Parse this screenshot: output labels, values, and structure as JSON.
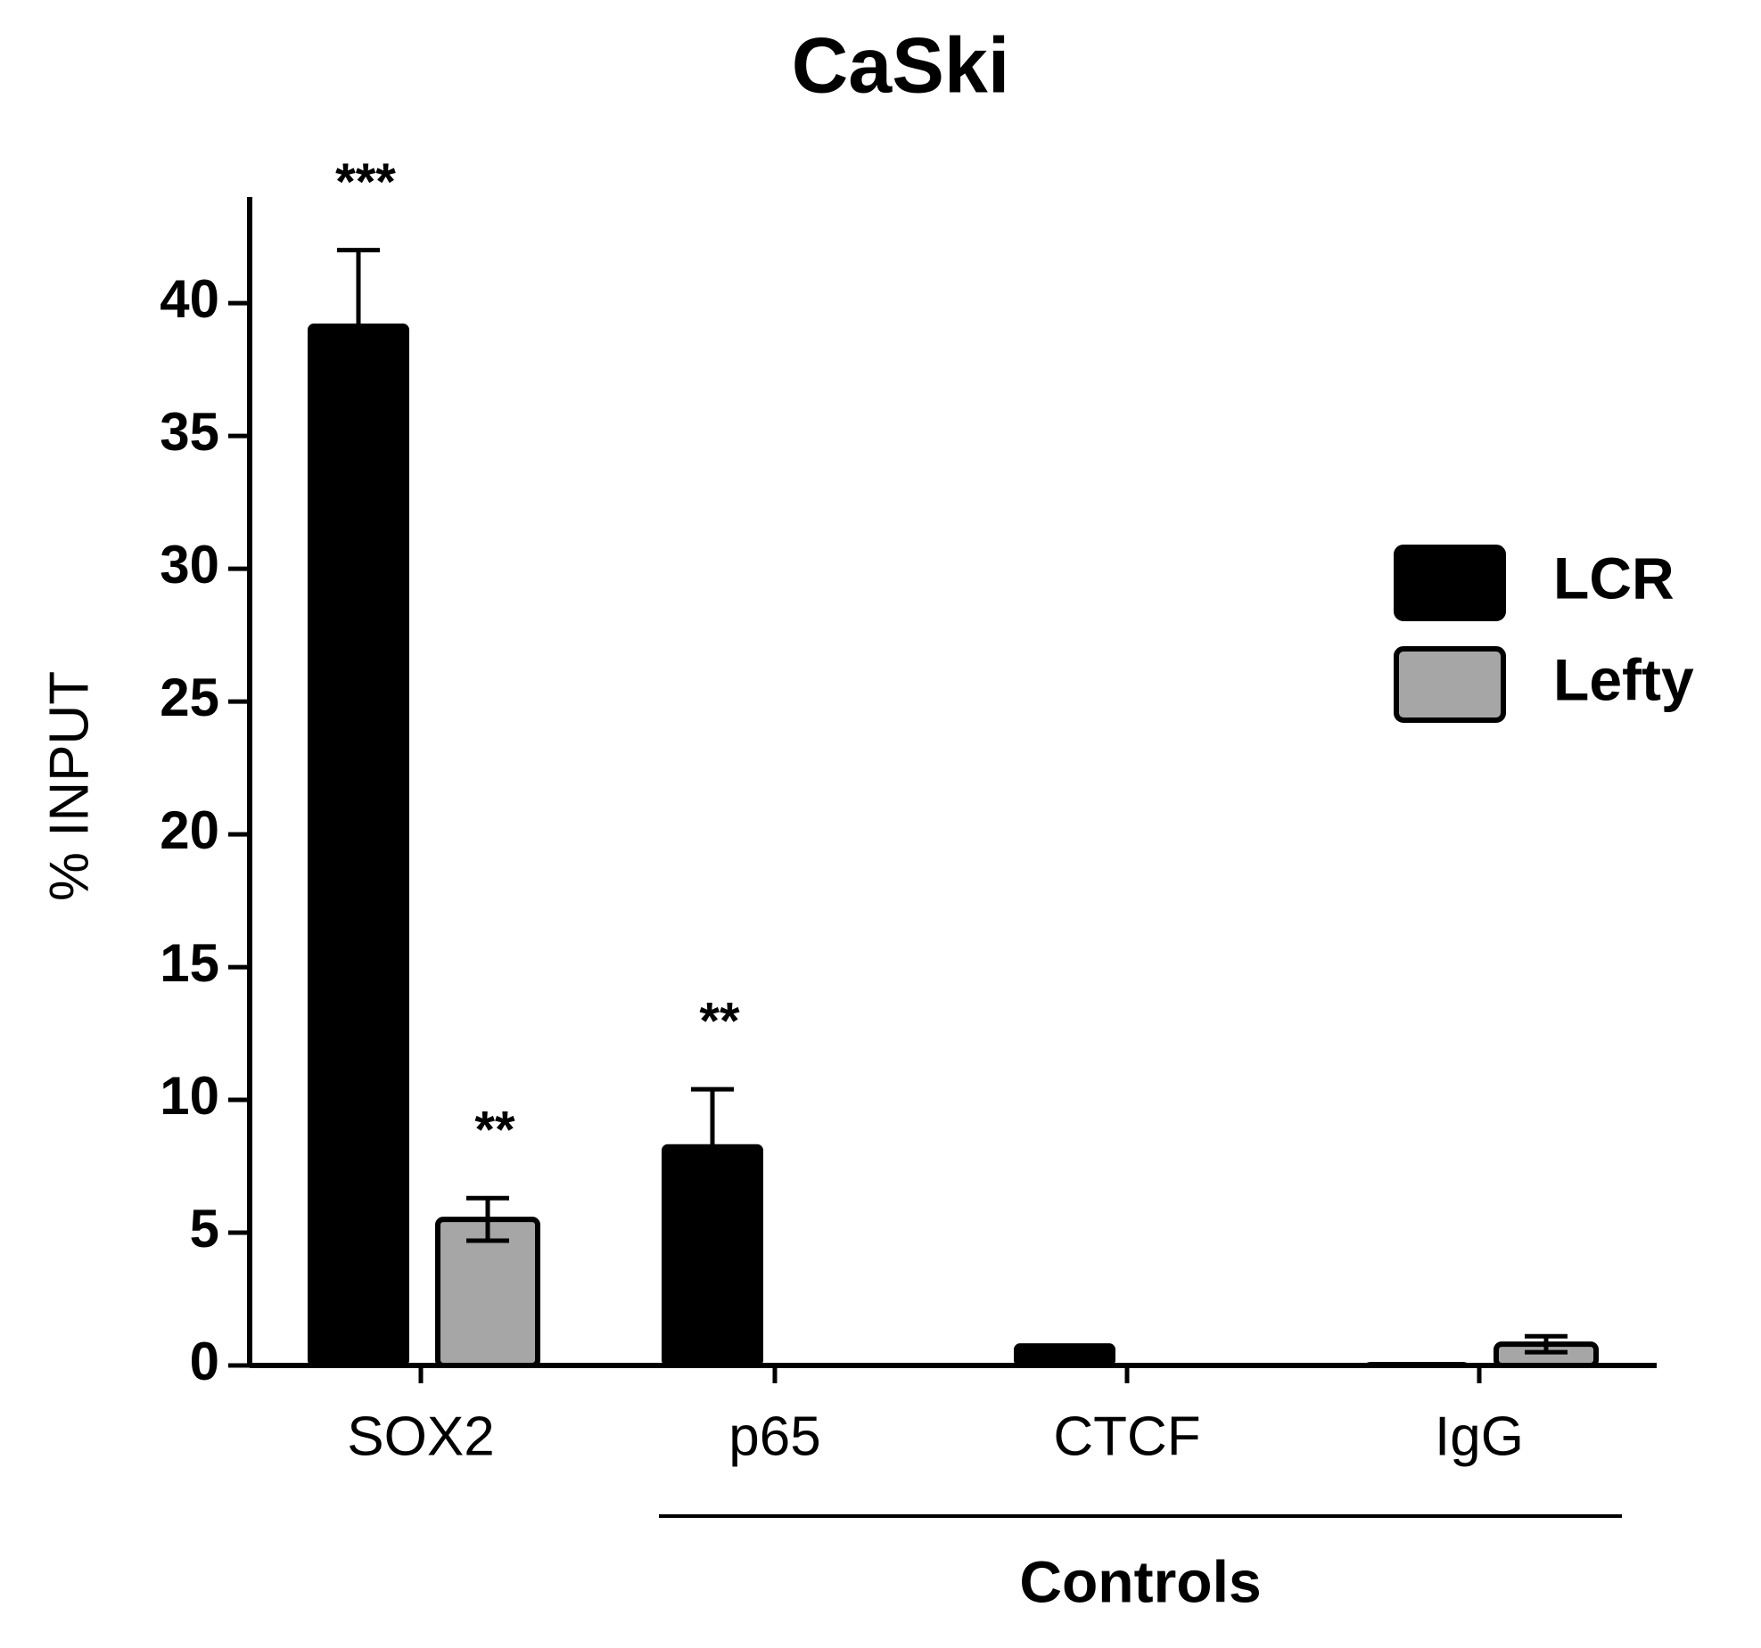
{
  "chart_data": {
    "type": "bar",
    "title": "CaSki",
    "y_label": "% INPUT",
    "categories": [
      "SOX2",
      "p65",
      "CTCF",
      "IgG"
    ],
    "series": [
      {
        "name": "LCR",
        "color": "#000000",
        "values": [
          39.2,
          8.3,
          0.8,
          0.1
        ],
        "errors": [
          2.8,
          2.1,
          null,
          null
        ],
        "significance": [
          "***",
          "**",
          null,
          null
        ]
      },
      {
        "name": "Lefty",
        "color": "#a6a6a6",
        "values": [
          5.5,
          0,
          0,
          0.8
        ],
        "errors": [
          0.8,
          null,
          null,
          0.3
        ],
        "significance": [
          "**",
          null,
          null,
          null
        ]
      }
    ],
    "groups": [
      {
        "label": "Controls",
        "categories": [
          "p65",
          "CTCF",
          "IgG"
        ]
      }
    ],
    "ylim": [
      0,
      44
    ],
    "yticks": [
      0,
      5,
      10,
      15,
      20,
      25,
      30,
      35,
      40
    ],
    "grid": false,
    "legend": "right"
  }
}
